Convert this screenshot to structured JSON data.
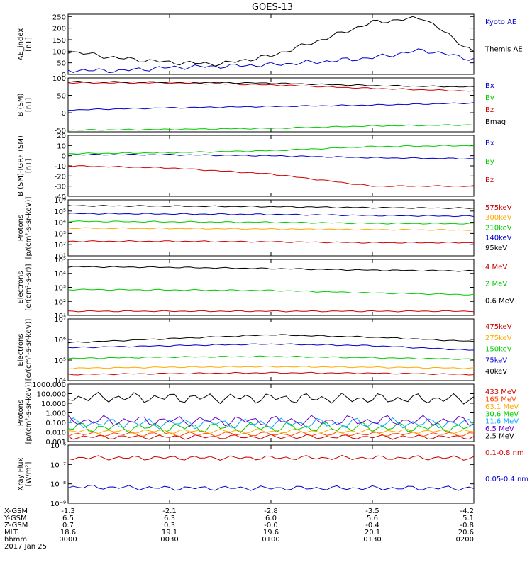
{
  "title": "GOES-13",
  "footer": {
    "row_labels": [
      "X-GSM",
      "Y-GSM",
      "Z-GSM",
      "MLT",
      "hhmm",
      "2017 Jan 25"
    ],
    "columns": [
      [
        "-1.3",
        "6.5",
        "0.7",
        "18.6",
        "0000"
      ],
      [
        "-2.1",
        "6.3",
        "0.3",
        "19.1",
        "0030"
      ],
      [
        "-2.8",
        "6.0",
        "-0.0",
        "19.6",
        "0100"
      ],
      [
        "-3.5",
        "5.6",
        "-0.4",
        "20.1",
        "0130"
      ],
      [
        "-4.2",
        "5.1",
        "-0.8",
        "20.6",
        "0200"
      ]
    ]
  },
  "chart_data": [
    {
      "type": "line",
      "scale": "linear",
      "ylabel": [
        "AE_index",
        "[nT]"
      ],
      "ylim": [
        0,
        260
      ],
      "yticks": [
        [
          0,
          "0"
        ],
        [
          50,
          "50"
        ],
        [
          100,
          "100"
        ],
        [
          150,
          "150"
        ],
        [
          200,
          "200"
        ],
        [
          250,
          "250"
        ]
      ],
      "x": [
        "0000",
        "0015",
        "0030",
        "0045",
        "0100",
        "0115",
        "0130",
        "0145",
        "0200"
      ],
      "series": [
        {
          "name": "Kyoto AE",
          "color": "#0000cc",
          "values": [
            18,
            16,
            30,
            35,
            42,
            55,
            72,
            105,
            65
          ]
        },
        {
          "name": "Themis AE",
          "color": "#000000",
          "values": [
            100,
            70,
            52,
            45,
            80,
            150,
            225,
            245,
            95
          ]
        }
      ]
    },
    {
      "type": "line",
      "scale": "linear",
      "ylabel": [
        "B (SM)",
        "[nT]"
      ],
      "ylim": [
        -55,
        100
      ],
      "yticks": [
        [
          -50,
          "-50"
        ],
        [
          0,
          "0"
        ],
        [
          50,
          "50"
        ],
        [
          100,
          "100"
        ]
      ],
      "x": [
        "0000",
        "0030",
        "0100",
        "0130",
        "0200"
      ],
      "series": [
        {
          "name": "Bx",
          "color": "#0000cc",
          "values": [
            8,
            14,
            18,
            22,
            28
          ]
        },
        {
          "name": "By",
          "color": "#00cc00",
          "values": [
            -50,
            -48,
            -45,
            -38,
            -35
          ]
        },
        {
          "name": "Bz",
          "color": "#cc0000",
          "values": [
            86,
            86,
            80,
            70,
            62
          ]
        },
        {
          "name": "Bmag",
          "color": "#000000",
          "values": [
            89,
            88,
            85,
            78,
            74
          ]
        }
      ]
    },
    {
      "type": "line",
      "scale": "linear",
      "ylabel": [
        "B (SM)-IGRF (SM)",
        "[nT]"
      ],
      "ylim": [
        -40,
        20
      ],
      "yticks": [
        [
          -40,
          "-40"
        ],
        [
          -30,
          "-30"
        ],
        [
          -20,
          "-20"
        ],
        [
          -10,
          "-10"
        ],
        [
          0,
          "0"
        ],
        [
          10,
          "10"
        ],
        [
          20,
          "20"
        ]
      ],
      "x": [
        "0000",
        "0030",
        "0100",
        "0130",
        "0200"
      ],
      "series": [
        {
          "name": "Bx",
          "color": "#0000cc",
          "values": [
            1,
            1,
            0,
            -2,
            -3
          ]
        },
        {
          "name": "By",
          "color": "#00cc00",
          "values": [
            2,
            3,
            5,
            9,
            10
          ]
        },
        {
          "name": "Bz",
          "color": "#cc0000",
          "values": [
            -10,
            -12,
            -18,
            -30,
            -30
          ]
        }
      ]
    },
    {
      "type": "line",
      "scale": "log",
      "ylabel": [
        "Protons",
        "[p/(cm²-s-sr-keV)]"
      ],
      "ylim": [
        10,
        1000000
      ],
      "yticks": [
        [
          10,
          "10¹"
        ],
        [
          100,
          "10²"
        ],
        [
          1000,
          "10³"
        ],
        [
          10000,
          "10⁴"
        ],
        [
          100000,
          "10⁵"
        ],
        [
          1000000,
          "10⁶"
        ]
      ],
      "x": [
        "0000",
        "0030",
        "0100",
        "0130",
        "0200"
      ],
      "series": [
        {
          "name": "575keV",
          "color": "#cc0000",
          "values": [
            200,
            200,
            180,
            150,
            150
          ]
        },
        {
          "name": "300keV",
          "color": "#ffaa00",
          "values": [
            3000,
            2800,
            2500,
            2200,
            2000
          ]
        },
        {
          "name": "210keV",
          "color": "#00cc00",
          "values": [
            12000,
            11000,
            10000,
            8000,
            7500
          ]
        },
        {
          "name": "140keV",
          "color": "#0000cc",
          "values": [
            60000,
            55000,
            50000,
            40000,
            35000
          ]
        },
        {
          "name": "95keV",
          "color": "#000000",
          "values": [
            300000,
            280000,
            250000,
            200000,
            180000
          ]
        }
      ]
    },
    {
      "type": "line",
      "scale": "log",
      "ylabel": [
        "Electrons",
        "[e/(cm²-s-sr)]"
      ],
      "ylim": [
        10,
        100000
      ],
      "yticks": [
        [
          10,
          "10¹"
        ],
        [
          100,
          "10²"
        ],
        [
          1000,
          "10³"
        ],
        [
          10000,
          "10⁴"
        ],
        [
          100000,
          "10⁵"
        ]
      ],
      "x": [
        "0000",
        "0030",
        "0100",
        "0130",
        "0200"
      ],
      "series": [
        {
          "name": "4 MeV",
          "color": "#cc0000",
          "values": [
            20,
            20,
            20,
            20,
            20
          ]
        },
        {
          "name": "2 MeV",
          "color": "#00cc00",
          "values": [
            700,
            650,
            600,
            400,
            300
          ]
        },
        {
          "name": "0.6 MeV",
          "color": "#000000",
          "values": [
            30000,
            27000,
            22000,
            17000,
            15000
          ]
        }
      ]
    },
    {
      "type": "line",
      "scale": "log",
      "ylabel": [
        "Electrons",
        "[e/(cm²-s-sr-keV)]"
      ],
      "ylim": [
        10000,
        10000000
      ],
      "yticks": [
        [
          10000,
          "10⁴"
        ],
        [
          100000,
          "10⁵"
        ],
        [
          1000000,
          "10⁶"
        ],
        [
          10000000,
          "10⁷"
        ]
      ],
      "x": [
        "0000",
        "0030",
        "0100",
        "0130",
        "0200"
      ],
      "series": [
        {
          "name": "475keV",
          "color": "#cc0000",
          "values": [
            20000,
            22000,
            24000,
            23000,
            20000
          ]
        },
        {
          "name": "275keV",
          "color": "#ffaa00",
          "values": [
            40000,
            45000,
            48000,
            45000,
            40000
          ]
        },
        {
          "name": "150keV",
          "color": "#00cc00",
          "values": [
            120000,
            140000,
            150000,
            130000,
            110000
          ]
        },
        {
          "name": "75keV",
          "color": "#0000cc",
          "values": [
            400000,
            500000,
            600000,
            500000,
            300000
          ]
        },
        {
          "name": "40keV",
          "color": "#000000",
          "values": [
            700000,
            1100000,
            1700000,
            1300000,
            800000
          ]
        }
      ]
    },
    {
      "type": "line",
      "scale": "log",
      "ylabel": [
        "Protons",
        "[p/(cm²-s-sr-keV)]"
      ],
      "ylim": [
        0.001,
        1000
      ],
      "yticks": [
        [
          0.001,
          "0.001"
        ],
        [
          0.01,
          "0.010"
        ],
        [
          0.1,
          "0.100"
        ],
        [
          1,
          "1.000"
        ],
        [
          10,
          "10.000"
        ],
        [
          100,
          "100.000"
        ],
        [
          1000,
          "1000.000"
        ]
      ],
      "x": [
        "0000",
        "0030",
        "0100",
        "0130",
        "0200"
      ],
      "series": [
        {
          "name": "433 MeV",
          "color": "#cc0000",
          "values": [
            0.003,
            0.003,
            0.003,
            0.003,
            0.003
          ]
        },
        {
          "name": "165 MeV",
          "color": "#ff4400",
          "values": [
            0.006,
            0.006,
            0.006,
            0.006,
            0.006
          ]
        },
        {
          "name": "63.1 MeV",
          "color": "#ffaa00",
          "values": [
            0.012,
            0.012,
            0.012,
            0.012,
            0.012
          ]
        },
        {
          "name": "30.6 MeV",
          "color": "#00cc00",
          "values": [
            0.03,
            0.03,
            0.03,
            0.03,
            0.03
          ]
        },
        {
          "name": "11.6 MeV",
          "color": "#00aaff",
          "values": [
            0.08,
            0.08,
            0.08,
            0.08,
            0.08
          ]
        },
        {
          "name": "6.5 MeV",
          "color": "#6600cc",
          "values": [
            0.15,
            0.15,
            0.15,
            0.15,
            0.15
          ]
        },
        {
          "name": "2.5 MeV",
          "color": "#000000",
          "values": [
            40,
            38,
            35,
            30,
            28
          ]
        }
      ]
    },
    {
      "type": "line",
      "scale": "log",
      "ylabel": [
        "Xray Flux",
        "[W/m²]"
      ],
      "ylim": [
        1e-09,
        1e-06
      ],
      "yticks": [
        [
          1e-09,
          "10⁻⁹"
        ],
        [
          1e-08,
          "10⁻⁸"
        ],
        [
          1e-07,
          "10⁻⁷"
        ],
        [
          1e-06,
          "10⁻⁶"
        ]
      ],
      "x": [
        "0000",
        "0030",
        "0100",
        "0130",
        "0200"
      ],
      "series": [
        {
          "name": "0.1-0.8 nm",
          "color": "#cc0000",
          "values": [
            2.2e-07,
            2.2e-07,
            2.2e-07,
            2.2e-07,
            2.2e-07
          ]
        },
        {
          "name": "0.05-0.4 nm",
          "color": "#0000cc",
          "values": [
            7e-09,
            6e-09,
            6e-09,
            6e-09,
            6e-09
          ]
        }
      ]
    }
  ]
}
